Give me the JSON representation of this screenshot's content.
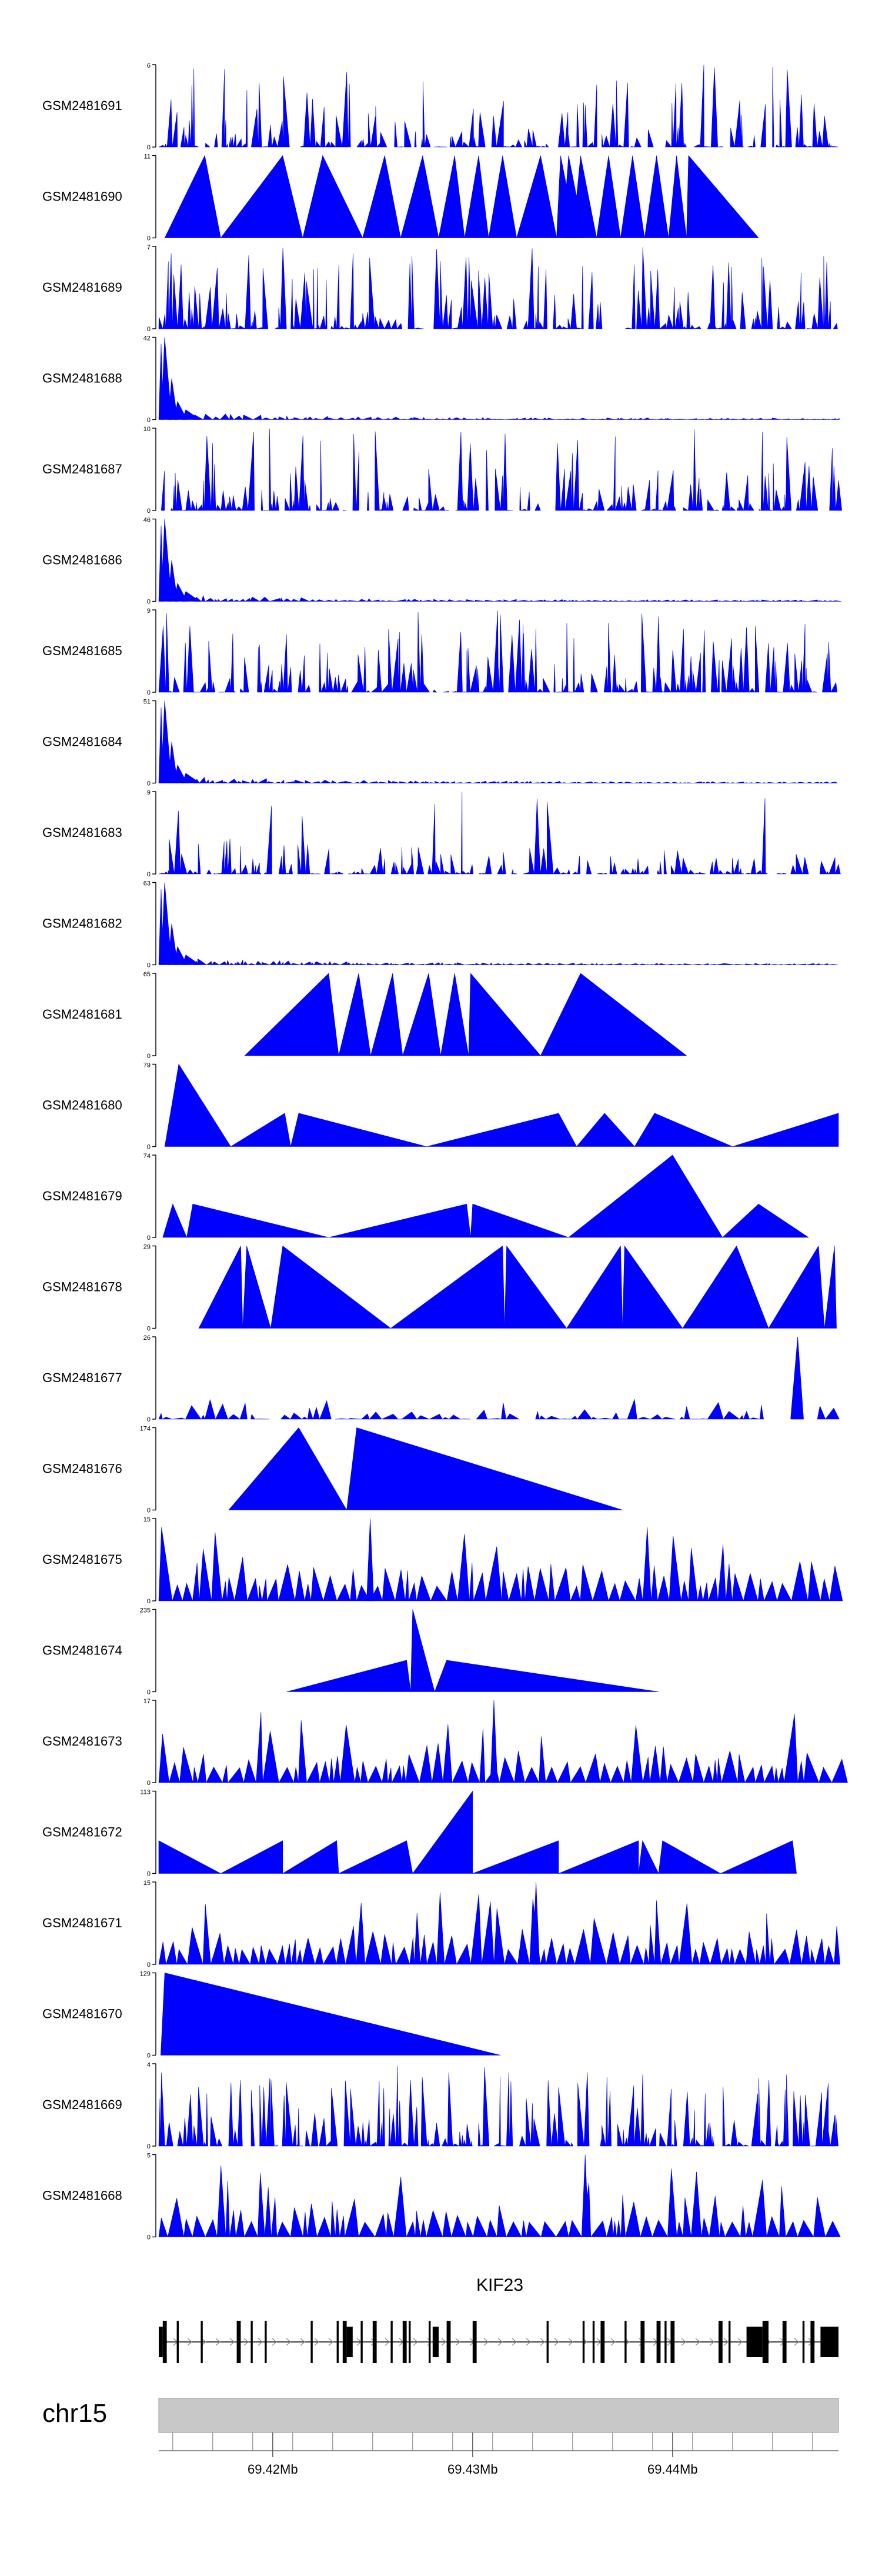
{
  "chart_data": {
    "type": "area",
    "title": "",
    "chromosome": "chr15",
    "gene": "KIF23",
    "x_range_mb": [
      69.4143,
      69.4483
    ],
    "x_ticks": [
      {
        "value": 69.42,
        "label": "69.42Mb"
      },
      {
        "value": 69.43,
        "label": "69.43Mb"
      },
      {
        "value": 69.44,
        "label": "69.44Mb"
      }
    ],
    "colors": {
      "fill": "#0000ff",
      "axis": "#000000",
      "gene": "#000000",
      "ideogram": "#c8c8c8"
    },
    "series": [
      {
        "name": "GSM2481691",
        "ymax": 6,
        "style": "noise"
      },
      {
        "name": "GSM2481690",
        "ymax": 11,
        "style": "sparse",
        "triangles": [
          [
            69.4146,
            69.4174,
            69.4166,
            11
          ],
          [
            69.4174,
            69.4215,
            69.4205,
            11
          ],
          [
            69.4215,
            69.4245,
            69.4225,
            11
          ],
          [
            69.4245,
            69.4264,
            69.4256,
            11
          ],
          [
            69.4264,
            69.4283,
            69.4275,
            11
          ],
          [
            69.4283,
            69.4296,
            69.4291,
            11
          ],
          [
            69.4296,
            69.4308,
            69.4303,
            11
          ],
          [
            69.4308,
            69.4322,
            69.4315,
            11
          ],
          [
            69.4322,
            69.4342,
            69.4334,
            11
          ],
          [
            69.4342,
            69.4352,
            69.4344,
            11
          ],
          [
            69.4345,
            69.4356,
            69.4348,
            11
          ],
          [
            69.435,
            69.4362,
            69.4354,
            11
          ],
          [
            69.4362,
            69.4374,
            69.4368,
            11
          ],
          [
            69.4374,
            69.4386,
            69.438,
            11
          ],
          [
            69.4386,
            69.4398,
            69.4392,
            11
          ],
          [
            69.4398,
            69.4407,
            69.4402,
            11
          ],
          [
            69.4407,
            69.4443,
            69.4408,
            11
          ]
        ]
      },
      {
        "name": "GSM2481689",
        "ymax": 7,
        "style": "noise"
      },
      {
        "name": "GSM2481688",
        "ymax": 42,
        "style": "peak"
      },
      {
        "name": "GSM2481687",
        "ymax": 10,
        "style": "noise"
      },
      {
        "name": "GSM2481686",
        "ymax": 46,
        "style": "peak"
      },
      {
        "name": "GSM2481685",
        "ymax": 9,
        "style": "noise"
      },
      {
        "name": "GSM2481684",
        "ymax": 51,
        "style": "peak"
      },
      {
        "name": "GSM2481683",
        "ymax": 9,
        "style": "noise_decay"
      },
      {
        "name": "GSM2481682",
        "ymax": 63,
        "style": "peak"
      },
      {
        "name": "GSM2481681",
        "ymax": 65,
        "style": "sparse",
        "triangles": [
          [
            69.4186,
            69.4233,
            69.4228,
            65
          ],
          [
            69.4233,
            69.4249,
            69.4243,
            65
          ],
          [
            69.4249,
            69.4265,
            69.426,
            65
          ],
          [
            69.4265,
            69.4284,
            69.4278,
            65
          ],
          [
            69.4284,
            69.4298,
            69.4291,
            65
          ],
          [
            69.4298,
            69.4334,
            69.4299,
            65
          ],
          [
            69.4334,
            69.4407,
            69.4354,
            65
          ]
        ]
      },
      {
        "name": "GSM2481680",
        "ymax": 79,
        "style": "sparse",
        "triangles": [
          [
            69.4146,
            69.4179,
            69.4153,
            79
          ],
          [
            69.4179,
            69.4209,
            69.4206,
            32
          ],
          [
            69.4209,
            69.4277,
            69.4213,
            32
          ],
          [
            69.4277,
            69.4352,
            69.4343,
            32
          ],
          [
            69.4352,
            69.4381,
            69.4366,
            32
          ],
          [
            69.4381,
            69.443,
            69.4391,
            32
          ],
          [
            69.443,
            69.4483,
            69.4483,
            32
          ]
        ]
      },
      {
        "name": "GSM2481679",
        "ymax": 74,
        "style": "sparse",
        "triangles": [
          [
            69.4145,
            69.4157,
            69.415,
            30
          ],
          [
            69.4157,
            69.4228,
            69.416,
            30
          ],
          [
            69.4228,
            69.4299,
            69.4297,
            30
          ],
          [
            69.4299,
            69.4348,
            69.43,
            30
          ],
          [
            69.4348,
            69.4425,
            69.44,
            74
          ],
          [
            69.4425,
            69.4468,
            69.4443,
            30
          ]
        ]
      },
      {
        "name": "GSM2481678",
        "ymax": 29,
        "style": "sparse",
        "triangles": [
          [
            69.4163,
            69.4185,
            69.4184,
            29
          ],
          [
            69.4185,
            69.4199,
            69.4187,
            29
          ],
          [
            69.4199,
            69.4259,
            69.4205,
            29
          ],
          [
            69.4259,
            69.4316,
            69.4315,
            29
          ],
          [
            69.4316,
            69.4347,
            69.4317,
            29
          ],
          [
            69.4347,
            69.4375,
            69.4374,
            29
          ],
          [
            69.4375,
            69.4405,
            69.4376,
            29
          ],
          [
            69.4405,
            69.4448,
            69.4432,
            29
          ],
          [
            69.4448,
            69.4476,
            69.4473,
            29
          ],
          [
            69.4476,
            69.4482,
            69.4481,
            29
          ]
        ]
      },
      {
        "name": "GSM2481677",
        "ymax": 26,
        "style": "noise_spike"
      },
      {
        "name": "GSM2481676",
        "ymax": 174,
        "style": "sparse",
        "triangles": [
          [
            69.4178,
            69.4237,
            69.4213,
            174
          ],
          [
            69.4237,
            69.4375,
            69.4242,
            174
          ]
        ]
      },
      {
        "name": "GSM2481675",
        "ymax": 15,
        "style": "comb"
      },
      {
        "name": "GSM2481674",
        "ymax": 235,
        "style": "sparse",
        "triangles": [
          [
            69.4207,
            69.4269,
            69.4267,
            90
          ],
          [
            69.4269,
            69.4281,
            69.427,
            235
          ],
          [
            69.4281,
            69.4393,
            69.4287,
            90
          ]
        ]
      },
      {
        "name": "GSM2481673",
        "ymax": 17,
        "style": "comb"
      },
      {
        "name": "GSM2481672",
        "ymax": 113,
        "style": "sparse",
        "triangles": [
          [
            69.4143,
            69.4174,
            69.4143,
            45
          ],
          [
            69.4174,
            69.4205,
            69.4205,
            45
          ],
          [
            69.4205,
            69.4233,
            69.4232,
            45
          ],
          [
            69.4233,
            69.427,
            69.4267,
            45
          ],
          [
            69.427,
            69.43,
            69.43,
            113
          ],
          [
            69.43,
            69.4343,
            69.4343,
            45
          ],
          [
            69.4343,
            69.4383,
            69.4383,
            45
          ],
          [
            69.4383,
            69.4393,
            69.4385,
            45
          ],
          [
            69.4393,
            69.4424,
            69.4395,
            45
          ],
          [
            69.4424,
            69.4462,
            69.446,
            45
          ]
        ]
      },
      {
        "name": "GSM2481671",
        "ymax": 15,
        "style": "comb"
      },
      {
        "name": "GSM2481670",
        "ymax": 129,
        "style": "sparse",
        "triangles": [
          [
            69.4144,
            69.4314,
            69.4146,
            129
          ]
        ]
      },
      {
        "name": "GSM2481669",
        "ymax": 4,
        "style": "noise"
      },
      {
        "name": "GSM2481668",
        "ymax": 5,
        "style": "comb"
      }
    ],
    "gene_model": {
      "name": "KIF23",
      "strand": "+",
      "start": 69.4143,
      "end": 69.4483,
      "exons": [
        [
          69.4143,
          69.4145,
          "big"
        ],
        [
          69.4145,
          69.4147,
          "small"
        ],
        [
          69.4152,
          69.4153,
          "small"
        ],
        [
          69.4164,
          69.4165,
          "small"
        ],
        [
          69.4182,
          69.4184,
          "small"
        ],
        [
          69.4189,
          69.419,
          "small"
        ],
        [
          69.4196,
          69.4197,
          "small"
        ],
        [
          69.4219,
          69.422,
          "small"
        ],
        [
          69.4232,
          69.4233,
          "small"
        ],
        [
          69.4235,
          69.4237,
          "small"
        ],
        [
          69.4237,
          69.424,
          "big"
        ],
        [
          69.4244,
          69.4245,
          "small"
        ],
        [
          69.425,
          69.4252,
          "small"
        ],
        [
          69.4259,
          69.426,
          "small"
        ],
        [
          69.4265,
          69.4267,
          "small"
        ],
        [
          69.4268,
          69.4269,
          "small"
        ],
        [
          69.4278,
          69.4279,
          "small"
        ],
        [
          69.428,
          69.4283,
          "big"
        ],
        [
          69.4287,
          69.4289,
          "small"
        ],
        [
          69.43,
          69.4302,
          "small"
        ],
        [
          69.4337,
          69.4338,
          "small"
        ],
        [
          69.4355,
          69.4356,
          "small"
        ],
        [
          69.436,
          69.4361,
          "small"
        ],
        [
          69.4364,
          69.4366,
          "small"
        ],
        [
          69.4376,
          69.4377,
          "small"
        ],
        [
          69.4384,
          69.4386,
          "small"
        ],
        [
          69.4392,
          69.4394,
          "small"
        ],
        [
          69.4396,
          69.4397,
          "small"
        ],
        [
          69.4399,
          69.4401,
          "small"
        ],
        [
          69.4423,
          69.4425,
          "small"
        ],
        [
          69.4428,
          69.4429,
          "small"
        ],
        [
          69.4437,
          69.4445,
          "big"
        ],
        [
          69.4445,
          69.4448,
          "small"
        ],
        [
          69.4455,
          69.4457,
          "small"
        ],
        [
          69.4465,
          69.4466,
          "small"
        ],
        [
          69.4469,
          69.4471,
          "small"
        ],
        [
          69.4474,
          69.4478,
          "big"
        ],
        [
          69.4478,
          69.4483,
          "big"
        ]
      ]
    }
  }
}
